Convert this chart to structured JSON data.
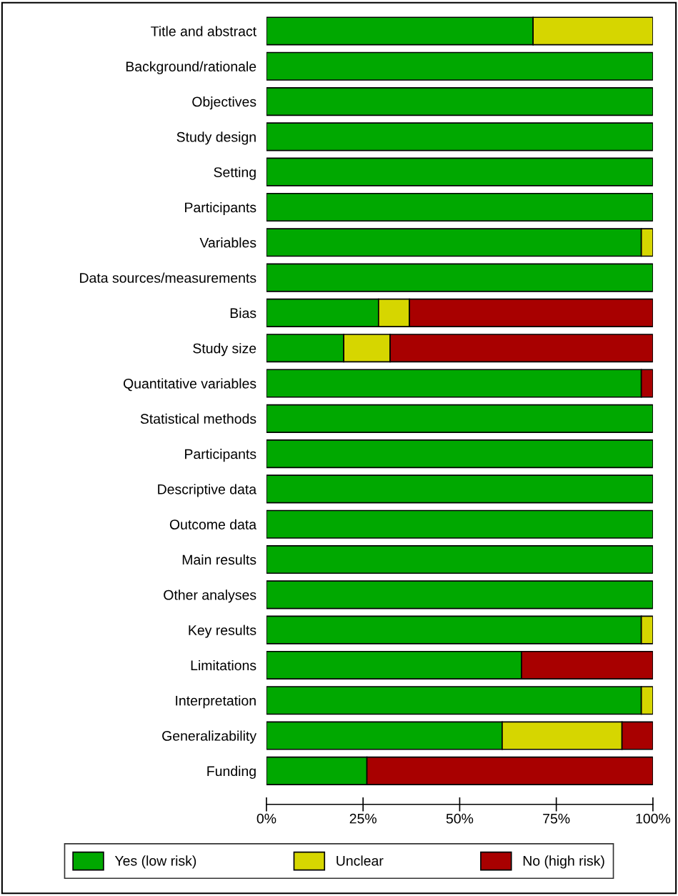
{
  "chart_data": {
    "type": "bar",
    "orientation": "horizontal",
    "stacked": true,
    "categories": [
      "Title and abstract",
      "Background/rationale",
      "Objectives",
      "Study design",
      "Setting",
      "Participants",
      "Variables",
      "Data sources/measurements",
      "Bias",
      "Study size",
      "Quantitative variables",
      "Statistical methods",
      "Participants",
      "Descriptive data",
      "Outcome data",
      "Main results",
      "Other analyses",
      "Key results",
      "Limitations",
      "Interpretation",
      "Generalizability",
      "Funding"
    ],
    "series": [
      {
        "name": "Yes (low risk)",
        "color": "#00a800",
        "values": [
          69,
          100,
          100,
          100,
          100,
          100,
          97,
          100,
          29,
          20,
          97,
          100,
          100,
          100,
          100,
          100,
          100,
          97,
          66,
          97,
          61,
          26
        ]
      },
      {
        "name": "Unclear",
        "color": "#d6d600",
        "values": [
          31,
          null,
          null,
          null,
          null,
          null,
          3,
          null,
          8,
          12,
          null,
          null,
          null,
          null,
          null,
          null,
          null,
          3,
          null,
          3,
          31,
          null
        ]
      },
      {
        "name": "No (high risk)",
        "color": "#a80000",
        "values": [
          null,
          null,
          null,
          null,
          null,
          null,
          null,
          null,
          63,
          68,
          3,
          null,
          null,
          null,
          null,
          null,
          null,
          null,
          34,
          null,
          8,
          74
        ]
      }
    ],
    "xlim": [
      0,
      100
    ],
    "xticks": [
      {
        "value": 0,
        "label": "0%"
      },
      {
        "value": 25,
        "label": "25%"
      },
      {
        "value": 50,
        "label": "50%"
      },
      {
        "value": 75,
        "label": "75%"
      },
      {
        "value": 100,
        "label": "100%"
      }
    ],
    "grid": false,
    "legend": "bottom"
  }
}
